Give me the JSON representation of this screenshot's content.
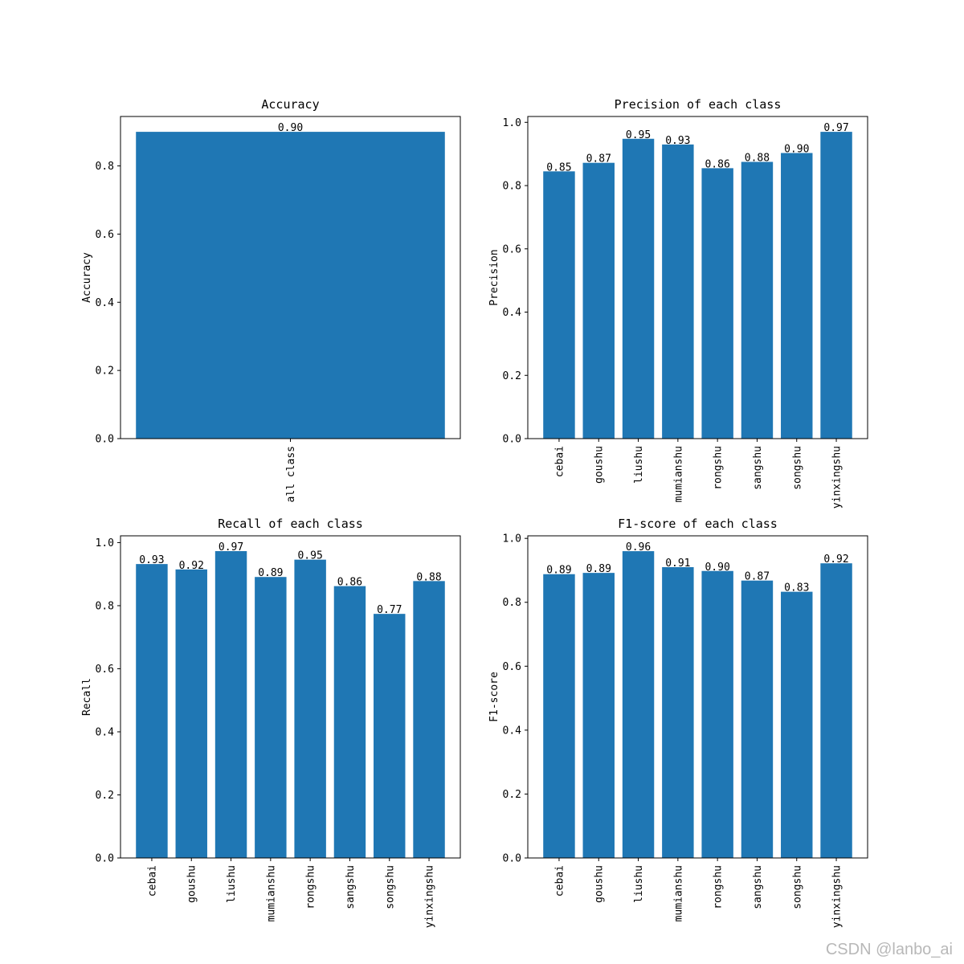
{
  "watermark": "CSDN @lanbo_ai",
  "colors": {
    "bar": "#1f77b4",
    "axis": "#000000",
    "text": "#000000"
  },
  "chart_data": [
    {
      "type": "bar",
      "title": "Accuracy",
      "ylabel": "Accuracy",
      "xlabel": "",
      "categories": [
        "all class"
      ],
      "values": [
        0.9
      ],
      "value_labels": [
        "0.90"
      ],
      "ylim": [
        0,
        0.945
      ],
      "yticks": [
        0.0,
        0.2,
        0.4,
        0.6,
        0.8
      ],
      "ytick_labels": [
        "0.0",
        "0.2",
        "0.4",
        "0.6",
        "0.8"
      ],
      "grid": false
    },
    {
      "type": "bar",
      "title": "Precision of each class",
      "ylabel": "Precision",
      "xlabel": "",
      "categories": [
        "cebai",
        "goushu",
        "liushu",
        "mumianshu",
        "rongshu",
        "sangshu",
        "songshu",
        "yinxingshu"
      ],
      "values": [
        0.845,
        0.872,
        0.948,
        0.93,
        0.855,
        0.875,
        0.903,
        0.97
      ],
      "value_labels": [
        "0.85",
        "0.87",
        "0.95",
        "0.93",
        "0.86",
        "0.88",
        "0.90",
        "0.97"
      ],
      "ylim": [
        0,
        1.0185
      ],
      "yticks": [
        0.0,
        0.2,
        0.4,
        0.6,
        0.8,
        1.0
      ],
      "ytick_labels": [
        "0.0",
        "0.2",
        "0.4",
        "0.6",
        "0.8",
        "1.0"
      ],
      "grid": false
    },
    {
      "type": "bar",
      "title": "Recall of each class",
      "ylabel": "Recall",
      "xlabel": "",
      "categories": [
        "cebai",
        "goushu",
        "liushu",
        "mumianshu",
        "rongshu",
        "sangshu",
        "songshu",
        "yinxingshu"
      ],
      "values": [
        0.932,
        0.915,
        0.973,
        0.891,
        0.946,
        0.862,
        0.774,
        0.878
      ],
      "value_labels": [
        "0.93",
        "0.92",
        "0.97",
        "0.89",
        "0.95",
        "0.86",
        "0.77",
        "0.88"
      ],
      "ylim": [
        0,
        1.0215
      ],
      "yticks": [
        0.0,
        0.2,
        0.4,
        0.6,
        0.8,
        1.0
      ],
      "ytick_labels": [
        "0.0",
        "0.2",
        "0.4",
        "0.6",
        "0.8",
        "1.0"
      ],
      "grid": false
    },
    {
      "type": "bar",
      "title": "F1-score of each class",
      "ylabel": "F1-score",
      "xlabel": "",
      "categories": [
        "cebai",
        "goushu",
        "liushu",
        "mumianshu",
        "rongshu",
        "sangshu",
        "songshu",
        "yinxingshu"
      ],
      "values": [
        0.888,
        0.892,
        0.96,
        0.91,
        0.898,
        0.868,
        0.833,
        0.922
      ],
      "value_labels": [
        "0.89",
        "0.89",
        "0.96",
        "0.91",
        "0.90",
        "0.87",
        "0.83",
        "0.92"
      ],
      "ylim": [
        0,
        1.008
      ],
      "yticks": [
        0.0,
        0.2,
        0.4,
        0.6,
        0.8,
        1.0
      ],
      "ytick_labels": [
        "0.0",
        "0.2",
        "0.4",
        "0.6",
        "0.8",
        "1.0"
      ],
      "grid": false
    }
  ]
}
